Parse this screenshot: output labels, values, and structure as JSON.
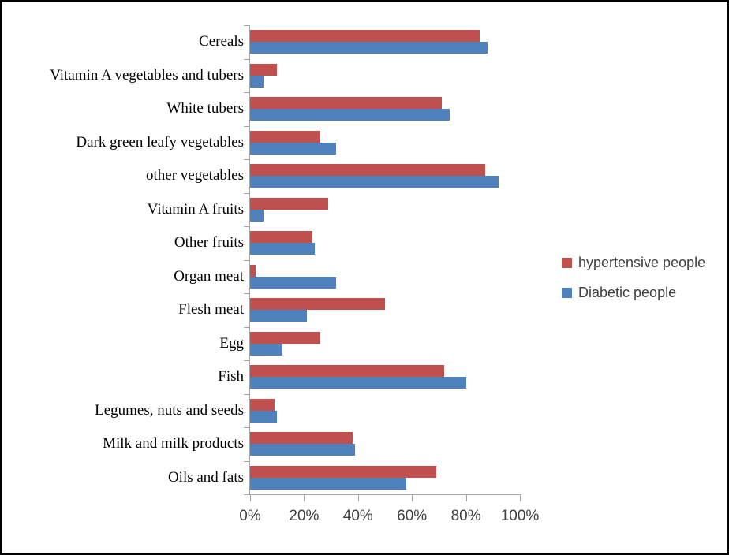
{
  "chart_data": {
    "type": "bar",
    "orientation": "horizontal",
    "title": "",
    "xlabel": "",
    "ylabel": "",
    "xlim": [
      0,
      100
    ],
    "grid": false,
    "legend_position": "right",
    "categories": [
      "Cereals",
      "Vitamin A vegetables and tubers",
      "White tubers",
      "Dark green leafy vegetables",
      "other vegetables",
      "Vitamin A fruits",
      "Other fruits",
      "Organ meat",
      "Flesh meat",
      "Egg",
      "Fish",
      "Legumes, nuts and seeds",
      "Milk and milk products",
      "Oils and fats"
    ],
    "series": [
      {
        "name": "hypertensive people",
        "color": "#c0504d",
        "values": [
          85,
          10,
          71,
          26,
          87,
          29,
          23,
          2,
          50,
          26,
          72,
          9,
          38,
          69
        ]
      },
      {
        "name": "Diabetic people",
        "color": "#4f81bd",
        "values": [
          88,
          5,
          74,
          32,
          92,
          5,
          24,
          32,
          21,
          12,
          80,
          10,
          39,
          58
        ]
      }
    ],
    "x_ticks": [
      "0%",
      "20%",
      "40%",
      "60%",
      "80%",
      "100%"
    ]
  },
  "colors": {
    "axis": "#a6a6a6",
    "category_text": "#000000",
    "tick_text": "#404040",
    "legend_text": "#3f3f3f",
    "frame_border": "#000000",
    "background": "#ffffff"
  }
}
